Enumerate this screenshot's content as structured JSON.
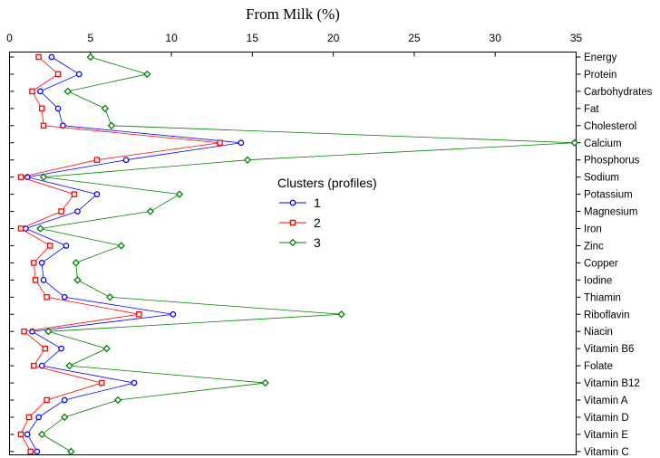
{
  "chart_data": {
    "type": "line",
    "orientation": "horizontal-profile",
    "title": "",
    "xlabel": "From Milk (%)",
    "ylabel": "",
    "xlim": [
      0,
      35
    ],
    "xticks": [
      0,
      5,
      10,
      15,
      20,
      25,
      30,
      35
    ],
    "grid": false,
    "legend_title": "Clusters (profiles)",
    "legend_position": "center-right",
    "categories": [
      "Energy",
      "Protein",
      "Carbohydrates",
      "Fat",
      "Cholesterol",
      "Calcium",
      "Phosphorus",
      "Sodium",
      "Potassium",
      "Magnesium",
      "Iron",
      "Zinc",
      "Copper",
      "Iodine",
      "Thiamin",
      "Riboflavin",
      "Niacin",
      "Vitamin B6",
      "Folate",
      "Vitamin B12",
      "Vitamin A",
      "Vitamin D",
      "Vitamin E",
      "Vitamin C"
    ],
    "series": [
      {
        "name": "1",
        "color": "#0000ff",
        "marker": "circle",
        "values": [
          2.6,
          4.3,
          1.9,
          3.0,
          3.3,
          14.3,
          7.2,
          1.1,
          5.4,
          4.2,
          1.0,
          3.5,
          2.0,
          2.1,
          3.4,
          10.1,
          1.4,
          3.2,
          2.0,
          7.7,
          3.4,
          1.8,
          1.1,
          1.7
        ]
      },
      {
        "name": "2",
        "color": "#ff0000",
        "marker": "square",
        "values": [
          1.8,
          3.0,
          1.4,
          2.0,
          2.1,
          13.0,
          5.4,
          0.7,
          4.0,
          3.2,
          0.7,
          2.5,
          1.5,
          1.6,
          2.3,
          8.0,
          0.9,
          2.2,
          1.5,
          5.7,
          2.3,
          1.2,
          0.7,
          1.3
        ]
      },
      {
        "name": "3",
        "color": "#008000",
        "marker": "diamond",
        "values": [
          5.0,
          8.5,
          3.6,
          5.9,
          6.3,
          34.9,
          14.7,
          2.1,
          10.5,
          8.7,
          1.9,
          6.9,
          4.1,
          4.2,
          6.2,
          20.5,
          2.4,
          6.0,
          3.7,
          15.8,
          6.7,
          3.4,
          2.0,
          3.8
        ]
      }
    ]
  }
}
